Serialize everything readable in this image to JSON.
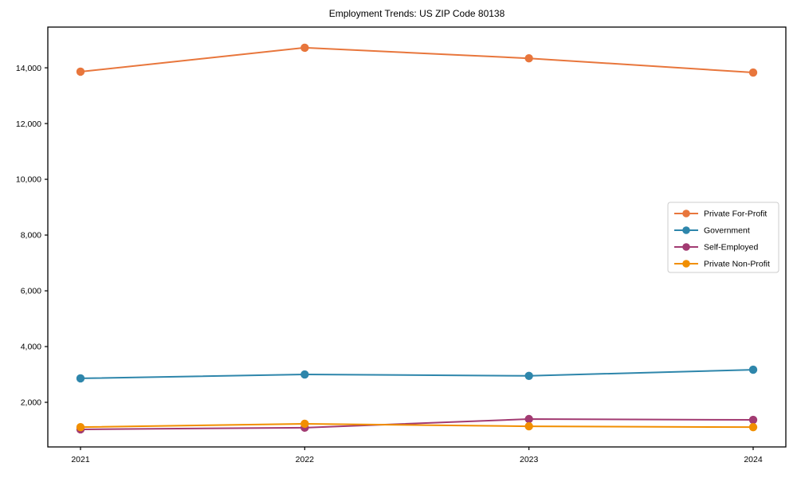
{
  "chart_data": {
    "type": "line",
    "title": "Employment Trends: US ZIP Code 80138",
    "x": [
      "2021",
      "2022",
      "2023",
      "2024"
    ],
    "series": [
      {
        "name": "Private For-Profit",
        "color": "#E8763C",
        "values": [
          13860,
          14720,
          14340,
          13830
        ]
      },
      {
        "name": "Government",
        "color": "#2E86AB",
        "values": [
          2860,
          3000,
          2950,
          3170
        ]
      },
      {
        "name": "Self-Employed",
        "color": "#A23B72",
        "values": [
          1030,
          1090,
          1400,
          1370
        ]
      },
      {
        "name": "Private Non-Profit",
        "color": "#F18F01",
        "values": [
          1110,
          1230,
          1140,
          1110
        ]
      }
    ],
    "yticks": [
      2000,
      4000,
      6000,
      8000,
      10000,
      12000,
      14000
    ],
    "ylim": [
      400,
      15460
    ],
    "xlabel": "",
    "ylabel": "",
    "grid": false,
    "legend_position": "right-center",
    "marker": "circle",
    "axis_color": "#000000",
    "background_color": "#ffffff"
  }
}
